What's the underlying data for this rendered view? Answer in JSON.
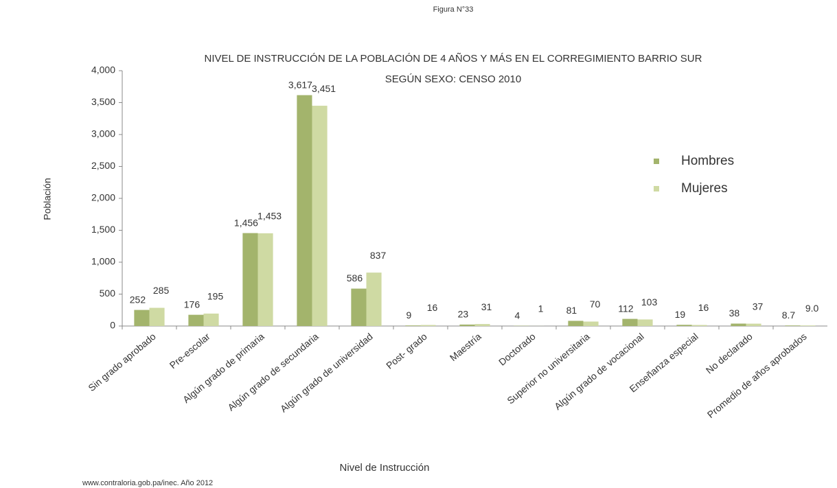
{
  "chart_data": {
    "type": "bar",
    "figure_label": "Figura N°33",
    "title": "NIVEL DE INSTRUCCIÓN DE LA POBLACIÓN DE 4 AÑOS Y MÁS EN EL CORREGIMIENTO BARRIO SUR",
    "subtitle": "SEGÚN SEXO: CENSO 2010",
    "y_label": "Población",
    "x_label": "Nivel de Instrucción",
    "source": "www.contraloria.gob.pa/inec. Año 2012",
    "categories": [
      "Sin grado aprobado",
      "Pre-escolar",
      "Algún grado de primaria",
      "Algún grado de secundaria",
      "Algún grado de universidad",
      "Post- grado",
      "Maestría",
      "Doctorado",
      "Superior no universitaria",
      "Algún grado de vocacional",
      "Enseñanza especial",
      "No declarado",
      "Promedio de años aprobados"
    ],
    "series": [
      {
        "name": "Hombres",
        "color": "#a3b46c",
        "values": [
          252,
          176,
          1456,
          3617,
          586,
          9,
          23,
          4,
          81,
          112,
          19,
          38,
          8.7
        ],
        "value_labels": [
          "252",
          "176",
          "1,456",
          "3,617",
          "586",
          "9",
          "23",
          "4",
          "81",
          "112",
          "19",
          "38",
          "8.7"
        ]
      },
      {
        "name": "Mujeres",
        "color": "#cfdaa3",
        "values": [
          285,
          195,
          1453,
          3451,
          837,
          16,
          31,
          1,
          70,
          103,
          16,
          37,
          9.0
        ],
        "value_labels": [
          "285",
          "195",
          "1,453",
          "3,451",
          "837",
          "16",
          "31",
          "1",
          "70",
          "103",
          "16",
          "37",
          "9.0"
        ]
      }
    ],
    "ylim": [
      0,
      4000
    ],
    "yticks": [
      0,
      500,
      {
        "value": 1000,
        "label": "1,000"
      },
      {
        "value": 1500,
        "label": "1,500"
      },
      {
        "value": 2000,
        "label": "2,000"
      },
      {
        "value": 2500,
        "label": "2,500"
      },
      {
        "value": 3000,
        "label": "3,000"
      },
      {
        "value": 3500,
        "label": "3,500"
      },
      {
        "value": 4000,
        "label": "4,000"
      }
    ],
    "legend": "right"
  }
}
